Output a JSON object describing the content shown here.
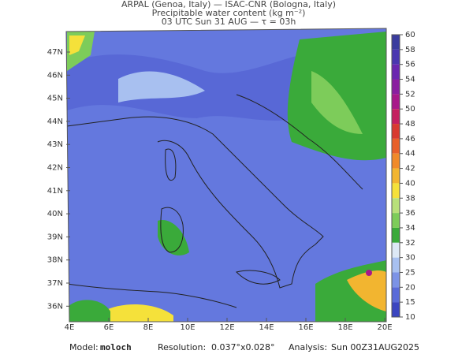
{
  "header": {
    "line1": "ARPAL (Genoa, Italy)  —  ISAC-CNR (Bologna, Italy)",
    "line2": "Precipitable water content (kg m⁻²)",
    "line3": "03 UTC Sun 31 AUG  —  τ = 03h"
  },
  "map": {
    "lat_labels": [
      "47N",
      "46N",
      "45N",
      "44N",
      "43N",
      "42N",
      "41N",
      "40N",
      "39N",
      "38N",
      "37N",
      "36N"
    ],
    "lon_labels": [
      "4E",
      "6E",
      "8E",
      "10E",
      "12E",
      "14E",
      "16E",
      "18E",
      "20E"
    ]
  },
  "colorbar": {
    "ticks": [
      60,
      58,
      56,
      54,
      52,
      50,
      48,
      46,
      44,
      42,
      40,
      38,
      36,
      34,
      32,
      30,
      25,
      20,
      15,
      10
    ],
    "colors": [
      "#3a3c9e",
      "#4a36b0",
      "#6a26b0",
      "#8a1ea0",
      "#a8188a",
      "#c42060",
      "#d83a30",
      "#e8602a",
      "#f08a2a",
      "#f2b530",
      "#f5e13a",
      "#b8e07a",
      "#7dcc5a",
      "#3aaa3a",
      "#dde8f5",
      "#a8c0f0",
      "#7c93e6",
      "#5a6bd8",
      "#3b45c0"
    ]
  },
  "footer": {
    "model_label": "Model:",
    "model": "moloch",
    "resolution_label": "Resolution:",
    "resolution": "0.037°x0.028°",
    "analysis_label": "Analysis:",
    "analysis": "Sun 00Z31AUG2025"
  }
}
